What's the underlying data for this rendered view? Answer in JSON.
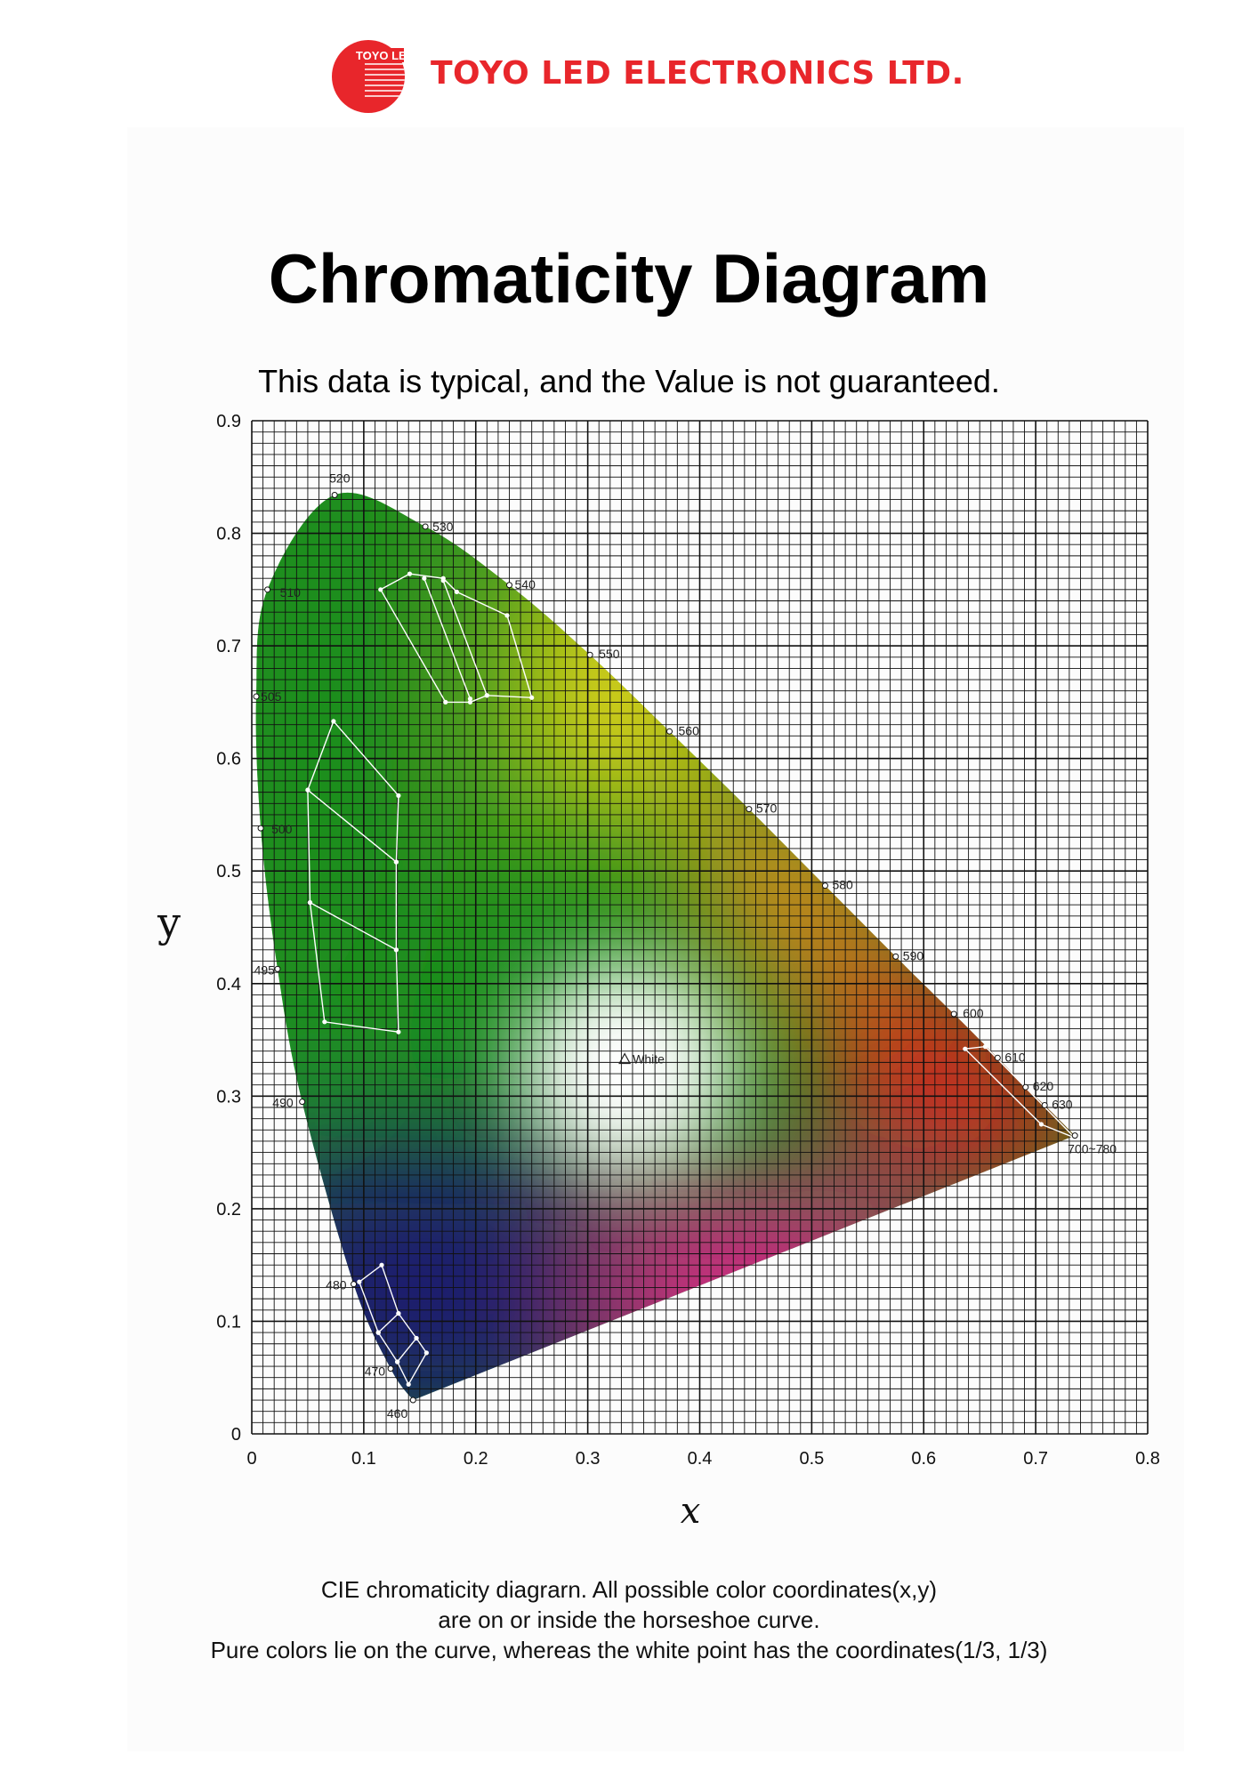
{
  "header": {
    "logo_text": "TOYO LED",
    "company": "TOYO LED ELECTRONICS LTD."
  },
  "title": "Chromaticity Diagram",
  "subtitle": "This data is typical, and the Value is not guaranteed.",
  "caption": {
    "line1": "CIE chromaticity diagrarn. All possible color coordinates(x,y)",
    "line2": "are on or inside the horseshoe curve.",
    "line3": "Pure colors lie on the curve, whereas the white point has the coordinates(1/3, 1/3)"
  },
  "chart_data": {
    "type": "scatter",
    "xlabel": "x",
    "ylabel": "y",
    "xlim": [
      0,
      0.8
    ],
    "ylim": [
      0,
      0.9
    ],
    "x_ticks": [
      "0",
      "0.1",
      "0.2",
      "0.3",
      "0.4",
      "0.5",
      "0.6",
      "0.7",
      "0.8"
    ],
    "y_ticks": [
      "0",
      "0.1",
      "0.2",
      "0.3",
      "0.4",
      "0.5",
      "0.6",
      "0.7",
      "0.8",
      "0.9"
    ],
    "grid": true,
    "grid_step": 0.01,
    "spectral_locus": [
      {
        "label": "460",
        "x": 0.144,
        "y": 0.03
      },
      {
        "label": "470",
        "x": 0.124,
        "y": 0.058
      },
      {
        "label": "480",
        "x": 0.091,
        "y": 0.133
      },
      {
        "label": "490",
        "x": 0.045,
        "y": 0.295
      },
      {
        "label": "495",
        "x": 0.023,
        "y": 0.413
      },
      {
        "label": "500",
        "x": 0.008,
        "y": 0.538
      },
      {
        "label": "505",
        "x": 0.004,
        "y": 0.655
      },
      {
        "label": "510",
        "x": 0.014,
        "y": 0.75
      },
      {
        "label": "520",
        "x": 0.074,
        "y": 0.834
      },
      {
        "label": "530",
        "x": 0.155,
        "y": 0.806
      },
      {
        "label": "540",
        "x": 0.23,
        "y": 0.754
      },
      {
        "label": "550",
        "x": 0.302,
        "y": 0.692
      },
      {
        "label": "560",
        "x": 0.373,
        "y": 0.624
      },
      {
        "label": "570",
        "x": 0.444,
        "y": 0.555
      },
      {
        "label": "580",
        "x": 0.512,
        "y": 0.487
      },
      {
        "label": "590",
        "x": 0.575,
        "y": 0.424
      },
      {
        "label": "600",
        "x": 0.627,
        "y": 0.373
      },
      {
        "label": "610",
        "x": 0.666,
        "y": 0.334
      },
      {
        "label": "620",
        "x": 0.691,
        "y": 0.308
      },
      {
        "label": "630",
        "x": 0.708,
        "y": 0.292
      },
      {
        "label": "700~780",
        "x": 0.735,
        "y": 0.265
      }
    ],
    "white_point": {
      "label": "White",
      "x": 0.333,
      "y": 0.333
    },
    "bin_regions": [
      {
        "group": "green",
        "points": [
          [
            0.115,
            0.75
          ],
          [
            0.141,
            0.764
          ],
          [
            0.171,
            0.76
          ],
          [
            0.183,
            0.748
          ],
          [
            0.228,
            0.727
          ],
          [
            0.25,
            0.654
          ],
          [
            0.21,
            0.656
          ],
          [
            0.195,
            0.65
          ],
          [
            0.173,
            0.65
          ]
        ]
      },
      {
        "group": "green",
        "points": [
          [
            0.154,
            0.76
          ],
          [
            0.195,
            0.653
          ]
        ]
      },
      {
        "group": "green",
        "points": [
          [
            0.171,
            0.758
          ],
          [
            0.21,
            0.656
          ]
        ]
      },
      {
        "group": "blue-green",
        "points": [
          [
            0.073,
            0.633
          ],
          [
            0.131,
            0.567
          ],
          [
            0.129,
            0.508
          ],
          [
            0.129,
            0.43
          ],
          [
            0.131,
            0.357
          ],
          [
            0.065,
            0.366
          ],
          [
            0.052,
            0.472
          ],
          [
            0.05,
            0.572
          ]
        ]
      },
      {
        "group": "blue-green",
        "points": [
          [
            0.05,
            0.572
          ],
          [
            0.129,
            0.508
          ]
        ]
      },
      {
        "group": "blue-green",
        "points": [
          [
            0.052,
            0.472
          ],
          [
            0.129,
            0.43
          ]
        ]
      },
      {
        "group": "blue",
        "points": [
          [
            0.096,
            0.135
          ],
          [
            0.116,
            0.15
          ],
          [
            0.131,
            0.107
          ],
          [
            0.147,
            0.085
          ],
          [
            0.156,
            0.072
          ],
          [
            0.14,
            0.044
          ],
          [
            0.13,
            0.064
          ],
          [
            0.113,
            0.09
          ]
        ]
      },
      {
        "group": "blue",
        "points": [
          [
            0.113,
            0.09
          ],
          [
            0.131,
            0.107
          ]
        ]
      },
      {
        "group": "blue",
        "points": [
          [
            0.13,
            0.064
          ],
          [
            0.147,
            0.085
          ]
        ]
      },
      {
        "group": "red",
        "points": [
          [
            0.637,
            0.342
          ],
          [
            0.655,
            0.344
          ],
          [
            0.735,
            0.263
          ],
          [
            0.705,
            0.275
          ]
        ]
      }
    ],
    "colors": {
      "green": "#1e8e1e",
      "yellow": "#e9d617",
      "orange": "#f18a1a",
      "red": "#e8191d",
      "blue": "#1d1c6e",
      "magenta": "#e01c8c",
      "white": "#ffffff",
      "brand_red": "#e8262b"
    }
  }
}
